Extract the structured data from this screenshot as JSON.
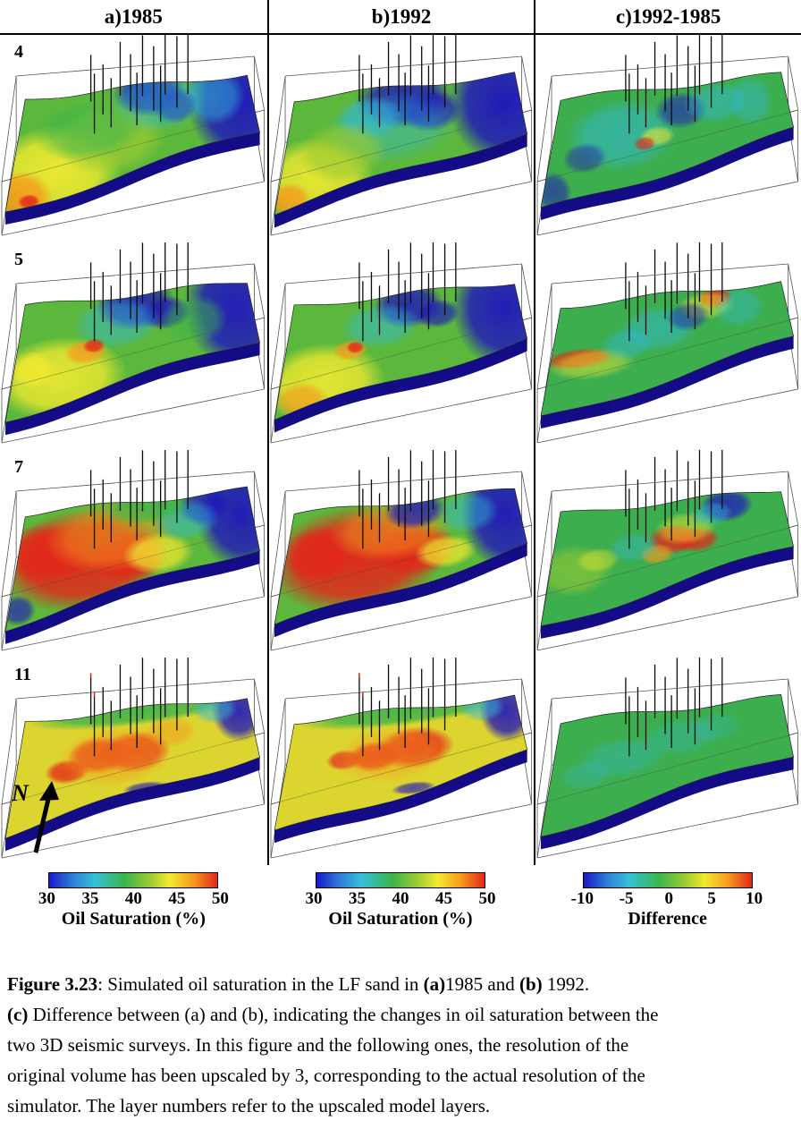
{
  "figure": {
    "columns": [
      {
        "label": "a)1985"
      },
      {
        "label": "b)1992"
      },
      {
        "label": "c)1992-1985"
      }
    ],
    "rows": [
      {
        "layer": "4"
      },
      {
        "layer": "5"
      },
      {
        "layer": "7"
      },
      {
        "layer": "11"
      }
    ],
    "north_label": "N"
  },
  "colorbars": [
    {
      "label": "Oil Saturation (%)",
      "ticks": [
        "30",
        "35",
        "40",
        "45",
        "50"
      ]
    },
    {
      "label": "Oil Saturation (%)",
      "ticks": [
        "30",
        "35",
        "40",
        "45",
        "50"
      ]
    },
    {
      "label": "Difference",
      "ticks": [
        "-10",
        "-5",
        "0",
        "5",
        "10"
      ]
    }
  ],
  "colors": {
    "colormap": [
      "#1b18c8 0%",
      "#2f7fd6 14%",
      "#35c0d8 27%",
      "#3cb44b 45%",
      "#9ccb33 60%",
      "#f2ea30 72%",
      "#f59a1d 86%",
      "#e3261a 100%"
    ],
    "blue": "#1f16bb",
    "cyan": "#30b8dc",
    "green": "#3cb44b",
    "yellow_green": "#9ccb33",
    "yellow": "#f2ea30",
    "orange": "#f59a1d",
    "red": "#e3261a",
    "dark_navy": "#140c86",
    "diff_green": "#3dae4e",
    "sat_green": "#5cb83c",
    "layer11_base": "#ddd52f"
  },
  "caption": {
    "fig_label": "Figure 3.23",
    "line1_rest": ": Simulated oil saturation in the LF sand in ",
    "a_label": "(a)",
    "line1_mid": "1985  and ",
    "b_label": "(b)",
    "line1_end": " 1992.",
    "c_label": "(c)",
    "line2_rest": " Difference between (a) and (b), indicating the changes in oil saturation between the",
    "line3": "two 3D seismic surveys. In this figure and the following ones, the resolution of the",
    "line4": "original volume has been upscaled by 3, corresponding to the actual resolution of the",
    "line5": "simulator. The layer numbers refer to the upscaled model layers."
  }
}
